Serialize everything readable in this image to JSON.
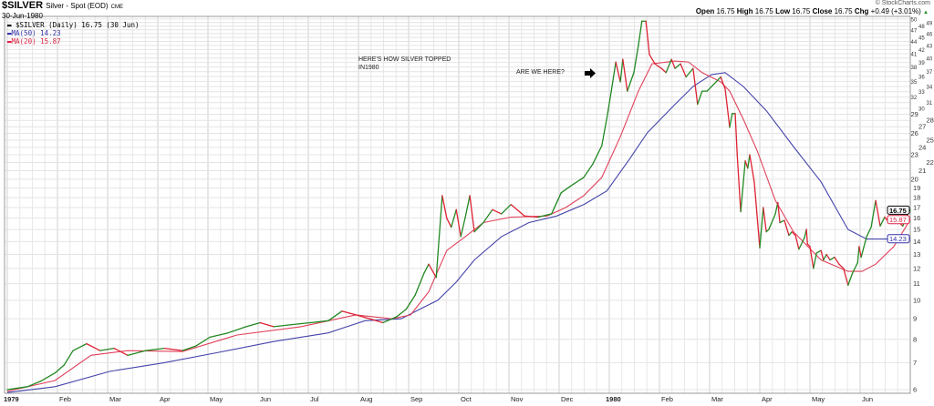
{
  "header": {
    "symbol": "$SILVER",
    "name": "Silver - Spot (EOD)",
    "exchange": "CME",
    "date": "30-Jun-1980",
    "copyright": "© StockCharts.com",
    "open_label": "Open",
    "open": "16.75",
    "high_label": "High",
    "high": "16.75",
    "low_label": "Low",
    "low": "16.75",
    "close_label": "Close",
    "close": "16.75",
    "chg_label": "Chg",
    "chg": "+0.49 (+3.01%)",
    "chg_arrow": "▲"
  },
  "legend": [
    {
      "label": "$SILVER (Daily) 16.75 (30 Jun)",
      "color": "#000000"
    },
    {
      "label": "MA(50) 14.23",
      "color": "#3333aa"
    },
    {
      "label": "MA(20) 15.87",
      "color": "#dd2244"
    }
  ],
  "annotations": {
    "note1_line1": "HERE'S HOW SILVER TOPPED",
    "note1_line2": "IN1980",
    "note2": "ARE WE HERE?",
    "arrow": "right-arrow"
  },
  "chart_data": {
    "type": "line",
    "title": "$SILVER Silver - Spot (EOD)",
    "x_unit": "months since Jan 1979",
    "y_scale": "log",
    "ylim": [
      5.8,
      50.6
    ],
    "y_ticks": [
      6,
      7,
      8,
      9,
      10,
      11,
      12,
      13,
      14,
      15,
      16,
      17,
      18,
      19,
      20,
      21,
      22,
      23,
      24,
      25,
      26,
      27,
      28,
      29,
      30,
      31,
      32,
      33,
      34,
      35,
      36,
      37,
      38,
      39,
      40,
      41,
      42,
      43,
      44,
      45,
      46,
      47,
      48,
      49,
      50
    ],
    "x_ticks": [
      {
        "t": 0,
        "label": "1979",
        "bold": true
      },
      {
        "t": 1,
        "label": "Feb"
      },
      {
        "t": 2,
        "label": "Mar"
      },
      {
        "t": 3,
        "label": "Apr"
      },
      {
        "t": 4,
        "label": "May"
      },
      {
        "t": 5,
        "label": "Jun"
      },
      {
        "t": 6,
        "label": "Jul"
      },
      {
        "t": 7,
        "label": "Aug"
      },
      {
        "t": 8,
        "label": "Sep"
      },
      {
        "t": 9,
        "label": "Oct"
      },
      {
        "t": 10,
        "label": "Nov"
      },
      {
        "t": 11,
        "label": "Dec"
      },
      {
        "t": 12,
        "label": "1980",
        "bold": true
      },
      {
        "t": 13,
        "label": "Feb"
      },
      {
        "t": 14,
        "label": "Mar"
      },
      {
        "t": 15,
        "label": "Apr"
      },
      {
        "t": 16,
        "label": "May"
      },
      {
        "t": 17,
        "label": "Jun"
      }
    ],
    "last_values": [
      {
        "label": "16.75",
        "value": 16.75,
        "color": "#000000"
      },
      {
        "label": "15.87",
        "value": 15.87,
        "color": "#dd2244"
      },
      {
        "label": "14.23",
        "value": 14.23,
        "color": "#3333aa"
      }
    ],
    "series": [
      {
        "name": "$SILVER",
        "up_color": "#228822",
        "down_color": "#dd2233",
        "points": [
          [
            0,
            6.0
          ],
          [
            0.4,
            6.1
          ],
          [
            0.67,
            6.3
          ],
          [
            0.95,
            6.6
          ],
          [
            1.13,
            6.9
          ],
          [
            1.31,
            7.5
          ],
          [
            1.58,
            7.8
          ],
          [
            1.85,
            7.5
          ],
          [
            2.13,
            7.6
          ],
          [
            2.4,
            7.3
          ],
          [
            2.76,
            7.5
          ],
          [
            3.13,
            7.6
          ],
          [
            3.49,
            7.5
          ],
          [
            3.76,
            7.7
          ],
          [
            4.04,
            8.1
          ],
          [
            4.4,
            8.3
          ],
          [
            4.76,
            8.6
          ],
          [
            5.04,
            8.8
          ],
          [
            5.31,
            8.6
          ],
          [
            5.67,
            8.7
          ],
          [
            6.04,
            8.8
          ],
          [
            6.4,
            8.9
          ],
          [
            6.67,
            9.4
          ],
          [
            6.95,
            9.2
          ],
          [
            7.22,
            9.0
          ],
          [
            7.49,
            8.8
          ],
          [
            7.76,
            9.1
          ],
          [
            7.95,
            9.5
          ],
          [
            8.13,
            10.3
          ],
          [
            8.31,
            11.7
          ],
          [
            8.4,
            12.3
          ],
          [
            8.55,
            11.4
          ],
          [
            8.67,
            18.2
          ],
          [
            8.76,
            16.0
          ],
          [
            8.85,
            15.2
          ],
          [
            8.95,
            16.8
          ],
          [
            9.04,
            14.4
          ],
          [
            9.13,
            16.1
          ],
          [
            9.22,
            18.2
          ],
          [
            9.31,
            14.8
          ],
          [
            9.49,
            15.6
          ],
          [
            9.67,
            16.8
          ],
          [
            9.85,
            16.4
          ],
          [
            10.04,
            17.3
          ],
          [
            10.31,
            16.2
          ],
          [
            10.58,
            16.1
          ],
          [
            10.85,
            16.4
          ],
          [
            11.04,
            18.5
          ],
          [
            11.22,
            19.2
          ],
          [
            11.49,
            20.2
          ],
          [
            11.67,
            21.8
          ],
          [
            11.85,
            24.2
          ],
          [
            11.95,
            28.3
          ],
          [
            12.04,
            33.1
          ],
          [
            12.13,
            39.1
          ],
          [
            12.22,
            34.9
          ],
          [
            12.27,
            39.7
          ],
          [
            12.36,
            33.1
          ],
          [
            12.49,
            36.8
          ],
          [
            12.58,
            43.0
          ],
          [
            12.65,
            49.4
          ],
          [
            12.73,
            49.4
          ],
          [
            12.8,
            40.8
          ],
          [
            12.91,
            38.7
          ],
          [
            13.04,
            37.7
          ],
          [
            13.13,
            36.8
          ],
          [
            13.24,
            39.7
          ],
          [
            13.31,
            37.7
          ],
          [
            13.42,
            38.7
          ],
          [
            13.53,
            35.9
          ],
          [
            13.67,
            37.7
          ],
          [
            13.76,
            30.7
          ],
          [
            13.85,
            33.1
          ],
          [
            13.95,
            33.1
          ],
          [
            14.04,
            34.0
          ],
          [
            14.13,
            34.9
          ],
          [
            14.22,
            35.9
          ],
          [
            14.31,
            33.5
          ],
          [
            14.4,
            26.9
          ],
          [
            14.45,
            29.1
          ],
          [
            14.51,
            29.1
          ],
          [
            14.55,
            23.0
          ],
          [
            14.62,
            16.6
          ],
          [
            14.71,
            22.2
          ],
          [
            14.76,
            21.3
          ],
          [
            14.8,
            23.0
          ],
          [
            14.89,
            19.7
          ],
          [
            15.0,
            13.5
          ],
          [
            15.07,
            17.0
          ],
          [
            15.13,
            14.8
          ],
          [
            15.18,
            15.0
          ],
          [
            15.31,
            16.4
          ],
          [
            15.36,
            17.5
          ],
          [
            15.4,
            15.6
          ],
          [
            15.49,
            15.8
          ],
          [
            15.58,
            14.5
          ],
          [
            15.64,
            14.8
          ],
          [
            15.71,
            14.5
          ],
          [
            15.78,
            13.4
          ],
          [
            15.89,
            14.3
          ],
          [
            15.93,
            15.0
          ],
          [
            15.95,
            13.8
          ],
          [
            16.0,
            13.6
          ],
          [
            16.07,
            12.0
          ],
          [
            16.13,
            13.1
          ],
          [
            16.22,
            13.3
          ],
          [
            16.27,
            12.6
          ],
          [
            16.33,
            13.0
          ],
          [
            16.4,
            12.6
          ],
          [
            16.49,
            12.8
          ],
          [
            16.58,
            12.3
          ],
          [
            16.67,
            12.0
          ],
          [
            16.76,
            10.9
          ],
          [
            16.85,
            11.7
          ],
          [
            16.95,
            12.4
          ],
          [
            16.98,
            13.6
          ],
          [
            17.02,
            12.8
          ],
          [
            17.13,
            14.4
          ],
          [
            17.22,
            15.2
          ],
          [
            17.31,
            17.7
          ],
          [
            17.4,
            15.3
          ],
          [
            17.49,
            16.1
          ],
          [
            17.58,
            15.6
          ],
          [
            17.67,
            15.7
          ],
          [
            17.76,
            15.7
          ],
          [
            17.85,
            15.3
          ],
          [
            17.95,
            16.4
          ],
          [
            18.0,
            16.75
          ]
        ]
      },
      {
        "name": "MA(20)",
        "color": "#e0405a",
        "points": [
          [
            0,
            5.94
          ],
          [
            0.95,
            6.32
          ],
          [
            1.67,
            7.3
          ],
          [
            2.4,
            7.5
          ],
          [
            3.49,
            7.46
          ],
          [
            4.58,
            8.2
          ],
          [
            5.85,
            8.6
          ],
          [
            6.95,
            9.2
          ],
          [
            7.67,
            9.0
          ],
          [
            8.04,
            9.2
          ],
          [
            8.4,
            10.5
          ],
          [
            8.76,
            13.3
          ],
          [
            9.13,
            14.4
          ],
          [
            9.49,
            15.6
          ],
          [
            10.04,
            16.1
          ],
          [
            10.76,
            16.2
          ],
          [
            11.13,
            17.0
          ],
          [
            11.49,
            18.2
          ],
          [
            11.85,
            20.2
          ],
          [
            12.22,
            25.5
          ],
          [
            12.58,
            33.1
          ],
          [
            12.85,
            38.7
          ],
          [
            13.31,
            39.3
          ],
          [
            13.58,
            39.1
          ],
          [
            13.85,
            36.8
          ],
          [
            14.22,
            34.9
          ],
          [
            14.4,
            33.1
          ],
          [
            14.67,
            28.2
          ],
          [
            14.95,
            23.5
          ],
          [
            15.31,
            17.7
          ],
          [
            15.67,
            14.8
          ],
          [
            16.22,
            12.6
          ],
          [
            16.76,
            11.8
          ],
          [
            17.04,
            11.8
          ],
          [
            17.31,
            12.3
          ],
          [
            17.67,
            13.6
          ],
          [
            18.0,
            15.87
          ]
        ]
      },
      {
        "name": "MA(50)",
        "color": "#4444aa",
        "points": [
          [
            0,
            5.9
          ],
          [
            0.95,
            6.1
          ],
          [
            2.04,
            6.66
          ],
          [
            3.13,
            7.0
          ],
          [
            4.22,
            7.43
          ],
          [
            5.31,
            7.9
          ],
          [
            6.4,
            8.3
          ],
          [
            7.13,
            8.9
          ],
          [
            7.85,
            9.0
          ],
          [
            8.22,
            9.5
          ],
          [
            8.58,
            10.0
          ],
          [
            8.95,
            11.1
          ],
          [
            9.31,
            12.6
          ],
          [
            9.85,
            14.4
          ],
          [
            10.4,
            15.6
          ],
          [
            10.95,
            16.2
          ],
          [
            11.49,
            17.3
          ],
          [
            11.95,
            18.7
          ],
          [
            12.4,
            22.4
          ],
          [
            12.76,
            26.1
          ],
          [
            13.31,
            30.7
          ],
          [
            13.67,
            34.0
          ],
          [
            14.04,
            36.4
          ],
          [
            14.31,
            36.8
          ],
          [
            14.67,
            34.0
          ],
          [
            15.13,
            29.6
          ],
          [
            15.67,
            24.1
          ],
          [
            16.22,
            19.7
          ],
          [
            16.76,
            15.0
          ],
          [
            17.13,
            14.2
          ],
          [
            17.49,
            14.2
          ],
          [
            18.0,
            14.23
          ]
        ]
      }
    ]
  }
}
